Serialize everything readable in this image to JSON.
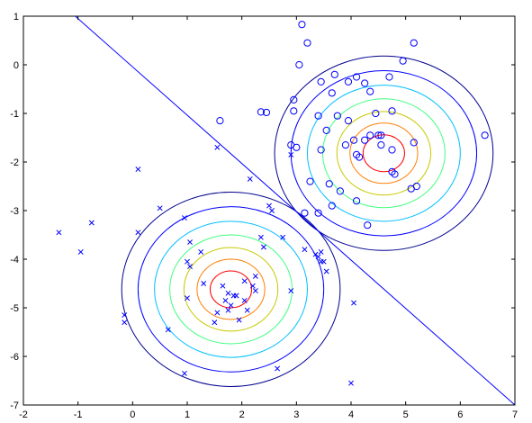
{
  "chart_data": {
    "type": "scatter",
    "title": "",
    "xlabel": "",
    "ylabel": "",
    "xlim": [
      -2,
      7
    ],
    "ylim": [
      -7,
      1
    ],
    "grid": false,
    "x_ticks": [
      "-2",
      "-1",
      "0",
      "1",
      "2",
      "3",
      "4",
      "5",
      "6",
      "7"
    ],
    "y_ticks": [
      "1",
      "0",
      "-1",
      "-2",
      "-3",
      "-4",
      "-5",
      "-6",
      "-7"
    ],
    "colors": {
      "points": "#0000ff",
      "boundary": "#0000ff",
      "contour_levels": [
        "#00008f",
        "#0000ff",
        "#00bfff",
        "#40ff80",
        "#c8c800",
        "#ff8000",
        "#ff0000",
        "#900000"
      ]
    },
    "decision_boundary": {
      "x": [
        -1.05,
        7.0
      ],
      "y": [
        1.0,
        -7.0
      ]
    },
    "contours": [
      {
        "center": [
          1.8,
          -4.62
        ],
        "radii": [
          2.0,
          1.7,
          1.4,
          1.12,
          0.86,
          0.62,
          0.38
        ]
      },
      {
        "center": [
          4.6,
          -1.82
        ],
        "radii": [
          2.0,
          1.7,
          1.4,
          1.12,
          0.86,
          0.62,
          0.38
        ]
      }
    ],
    "series": [
      {
        "marker": "circle",
        "x": [
          3.1,
          3.2,
          3.05,
          5.15,
          4.95,
          3.45,
          3.7,
          4.1,
          4.7,
          3.95,
          4.25,
          3.65,
          4.35,
          2.95,
          2.95,
          2.45,
          2.35,
          1.6,
          3.75,
          3.4,
          3.95,
          3.55,
          4.35,
          3.9,
          4.05,
          3.45,
          4.1,
          4.25,
          4.55,
          4.55,
          4.75,
          4.75,
          4.8,
          4.15,
          5.15,
          5.1,
          5.2,
          4.5,
          4.75,
          3.0,
          3.6,
          3.8,
          3.65,
          4.3,
          3.25,
          2.9,
          3.4,
          3.15,
          6.45,
          4.45,
          4.1
        ],
        "y": [
          0.83,
          0.45,
          0.0,
          0.45,
          0.08,
          -0.35,
          -0.2,
          -0.25,
          -0.25,
          -0.35,
          -0.38,
          -0.58,
          -0.55,
          -0.72,
          -0.95,
          -0.98,
          -0.97,
          -1.15,
          -1.05,
          -1.05,
          -1.15,
          -1.35,
          -1.45,
          -1.65,
          -1.55,
          -1.75,
          -1.85,
          -1.55,
          -1.45,
          -1.65,
          -1.75,
          -2.2,
          -2.25,
          -1.9,
          -1.6,
          -2.55,
          -2.5,
          -1.45,
          -0.95,
          -1.7,
          -2.45,
          -2.6,
          -2.9,
          -3.3,
          -2.4,
          -1.65,
          -3.05,
          -3.05,
          -1.45,
          -1.0,
          -2.8
        ]
      },
      {
        "marker": "x",
        "x": [
          -1.35,
          -0.95,
          -0.75,
          0.1,
          0.1,
          0.5,
          0.95,
          -0.15,
          -0.15,
          1.05,
          1.25,
          1.55,
          1.65,
          1.3,
          1.75,
          1.85,
          1.8,
          1.7,
          1.75,
          1.95,
          1.9,
          2.05,
          2.05,
          2.1,
          2.2,
          2.15,
          2.25,
          2.35,
          2.4,
          2.5,
          2.55,
          2.75,
          2.9,
          3.15,
          3.35,
          3.4,
          3.45,
          3.5,
          3.55,
          2.25,
          1.5,
          1.55,
          1.05,
          1.0,
          0.65,
          2.65,
          2.9,
          3.45,
          1.0,
          4.05,
          4.0,
          0.95
        ],
        "y": [
          -3.45,
          -3.85,
          -3.25,
          -2.15,
          -3.45,
          -2.95,
          -3.15,
          -5.15,
          -5.3,
          -3.65,
          -3.85,
          -1.7,
          -4.55,
          -4.5,
          -4.7,
          -4.75,
          -4.95,
          -4.85,
          -5.05,
          -5.25,
          -4.75,
          -4.45,
          -4.85,
          -5.05,
          -4.55,
          -2.35,
          -4.65,
          -3.55,
          -3.75,
          -2.9,
          -3.0,
          -3.55,
          -1.85,
          -3.8,
          -3.9,
          -3.95,
          -3.85,
          -4.05,
          -4.25,
          -4.35,
          -5.3,
          -5.1,
          -4.15,
          -4.05,
          -5.45,
          -6.25,
          -4.65,
          -4.05,
          -4.8,
          -4.9,
          -6.55,
          -6.35
        ]
      }
    ]
  }
}
